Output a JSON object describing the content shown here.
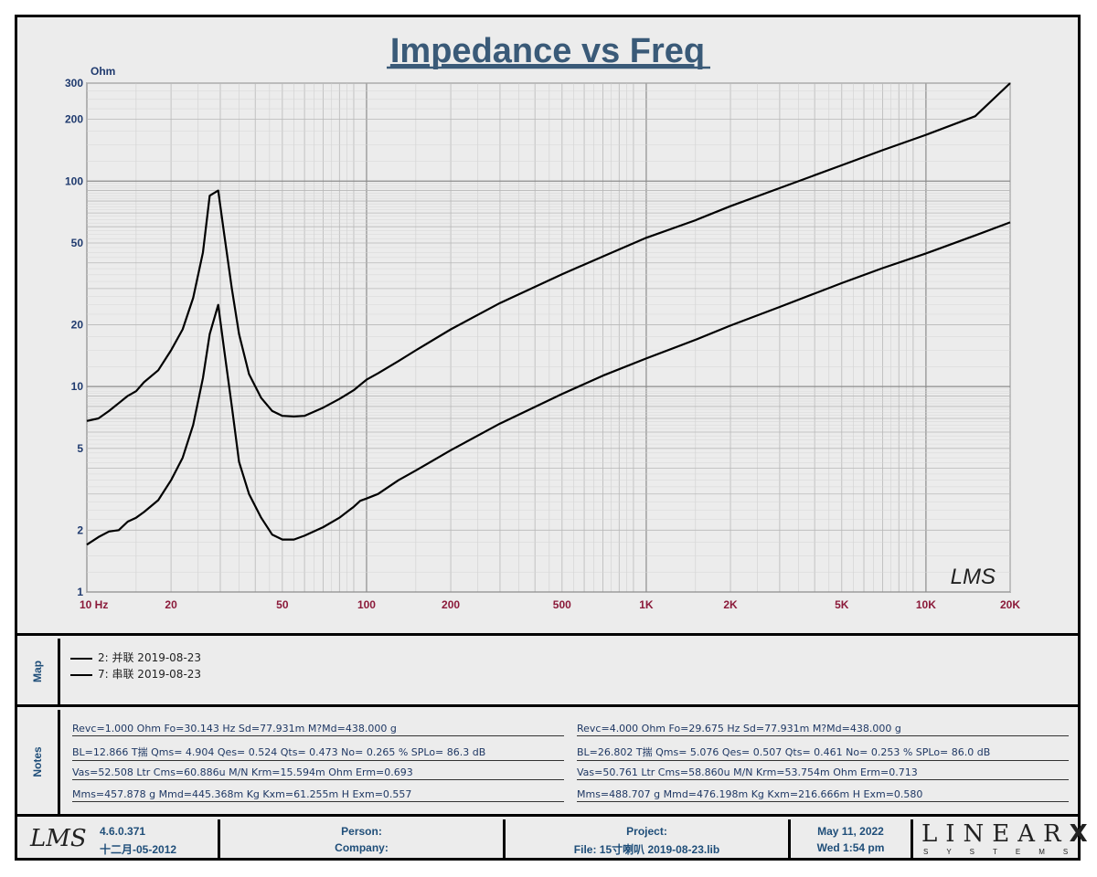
{
  "chart_data": {
    "type": "line",
    "title": "Impedance vs Freq",
    "ylabel": "Ohm",
    "xscale": "log",
    "yscale": "log",
    "xlim": [
      10,
      20000
    ],
    "ylim": [
      1,
      300
    ],
    "grid": true,
    "x_tick_labels": [
      {
        "v": 10,
        "label": "10   Hz"
      },
      {
        "v": 20,
        "label": "20"
      },
      {
        "v": 50,
        "label": "50"
      },
      {
        "v": 100,
        "label": "100"
      },
      {
        "v": 200,
        "label": "200"
      },
      {
        "v": 500,
        "label": "500"
      },
      {
        "v": 1000,
        "label": "1K"
      },
      {
        "v": 2000,
        "label": "2K"
      },
      {
        "v": 5000,
        "label": "5K"
      },
      {
        "v": 10000,
        "label": "10K"
      },
      {
        "v": 20000,
        "label": "20K"
      }
    ],
    "y_tick_labels": [
      {
        "v": 1,
        "label": "1"
      },
      {
        "v": 2,
        "label": "2"
      },
      {
        "v": 5,
        "label": "5"
      },
      {
        "v": 10,
        "label": "10"
      },
      {
        "v": 20,
        "label": "20"
      },
      {
        "v": 50,
        "label": "50"
      },
      {
        "v": 100,
        "label": "100"
      },
      {
        "v": 200,
        "label": "200"
      },
      {
        "v": 300,
        "label": "300"
      }
    ],
    "series": [
      {
        "name": "2: 并联 2019-08-23",
        "x": [
          10,
          11,
          12,
          13,
          14,
          15,
          16,
          18,
          20,
          22,
          24,
          26,
          27.5,
          29.5,
          31,
          33,
          35,
          38,
          42,
          46,
          50,
          55,
          60,
          70,
          80,
          90,
          95,
          100,
          110,
          130,
          150,
          200,
          300,
          500,
          700,
          1000,
          1500,
          2000,
          3000,
          5000,
          7000,
          10000,
          15000,
          20000
        ],
        "y": [
          1.7,
          1.85,
          1.97,
          2.0,
          2.2,
          2.3,
          2.45,
          2.8,
          3.5,
          4.5,
          6.5,
          11,
          18,
          25,
          15,
          8,
          4.3,
          3.0,
          2.3,
          1.9,
          1.8,
          1.8,
          1.88,
          2.07,
          2.3,
          2.6,
          2.78,
          2.85,
          3.0,
          3.5,
          3.9,
          4.9,
          6.6,
          9.2,
          11.3,
          13.7,
          16.9,
          19.8,
          24.4,
          31.9,
          37.7,
          44.5,
          54.4,
          63.0
        ]
      },
      {
        "name": "7: 串联 2019-08-23",
        "x": [
          10,
          11,
          12,
          13,
          14,
          15,
          16,
          18,
          20,
          22,
          24,
          26,
          27.5,
          29.5,
          31,
          33,
          35,
          38,
          42,
          46,
          50,
          55,
          60,
          70,
          80,
          90,
          95,
          100,
          110,
          130,
          150,
          200,
          300,
          500,
          700,
          1000,
          1500,
          2000,
          3000,
          5000,
          7000,
          10000,
          15000,
          20000
        ],
        "y": [
          6.8,
          7.0,
          7.6,
          8.3,
          9.0,
          9.5,
          10.5,
          12.0,
          15.0,
          19.0,
          27.0,
          45.0,
          85.0,
          90.0,
          55.0,
          30.0,
          18.0,
          11.5,
          8.8,
          7.6,
          7.2,
          7.15,
          7.2,
          7.9,
          8.7,
          9.6,
          10.2,
          10.8,
          11.6,
          13.3,
          15.0,
          19.0,
          25.5,
          35.2,
          43.0,
          53.0,
          64.5,
          75.5,
          92.5,
          119.5,
          141.5,
          168.0,
          207.0,
          300.0
        ]
      }
    ]
  },
  "watermark_text": "LMS",
  "map": {
    "tab_label": "Map",
    "legend": [
      {
        "label": "2: 并联 2019-08-23"
      },
      {
        "label": "7: 串联 2019-08-23"
      }
    ]
  },
  "notes": {
    "tab_label": "Notes",
    "left": [
      "Revc=1.000 Ohm  Fo=30.143 Hz  Sd=77.931m M?Md=438.000 g",
      "BL=12.866 T揣  Qms= 4.904  Qes= 0.524  Qts= 0.473  No= 0.265 %  SPLo= 86.3 dB",
      "Vas=52.508 Ltr  Cms=60.886u M/N  Krm=15.594m Ohm  Erm=0.693",
      "Mms=457.878 g  Mmd=445.368m Kg  Kxm=61.255m H  Exm=0.557"
    ],
    "right": [
      "Revc=4.000 Ohm  Fo=29.675 Hz  Sd=77.931m M?Md=438.000 g",
      "BL=26.802 T揣  Qms= 5.076  Qes= 0.507  Qts= 0.461  No= 0.253 %  SPLo= 86.0 dB",
      "Vas=50.761 Ltr  Cms=58.860u M/N  Krm=53.754m Ohm  Erm=0.713",
      "Mms=488.707 g  Mmd=476.198m Kg  Kxm=216.666m H  Exm=0.580"
    ]
  },
  "footer": {
    "logo_text": "LMS",
    "version": "4.6.0.371",
    "build_date": "十二月-05-2012",
    "person_label": "Person:",
    "company_label": "Company:",
    "project_label": "Project:",
    "file_label": "File: 15寸喇叭 2019-08-23.lib",
    "date": "May 11, 2022",
    "time": "Wed  1:54 pm",
    "brand_name": "LINEAR",
    "brand_mark": "X",
    "brand_sub": "SYSTEMS"
  },
  "colors": {
    "title": "#3a5a78",
    "axis_labels": "#8b1a3a",
    "y_labels": "#1f3a6e",
    "grid": "#b8b8b8",
    "curve": "#000000",
    "panel_bg": "#ececec"
  }
}
